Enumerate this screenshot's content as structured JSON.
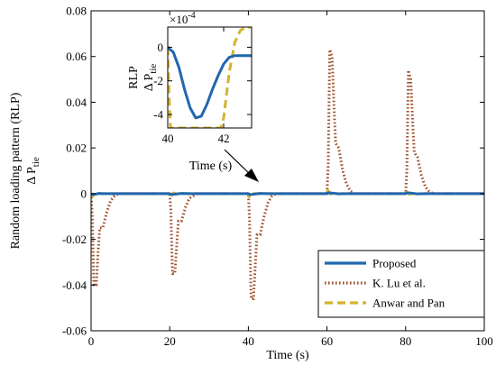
{
  "chart_data": [
    {
      "id": "main",
      "type": "line",
      "title": "",
      "xlabel": "Time (s)",
      "ylabel_line1": "Random loading pattern (RLP)",
      "ylabel_line2_prefix": "Δ P",
      "ylabel_line2_sub": "tie",
      "xlim": [
        0,
        100
      ],
      "ylim": [
        -0.06,
        0.08
      ],
      "xticks": [
        0,
        20,
        40,
        60,
        80,
        100
      ],
      "yticks": [
        -0.06,
        -0.04,
        -0.02,
        0,
        0.02,
        0.04,
        0.06,
        0.08
      ],
      "xtick_labels": [
        "0",
        "20",
        "40",
        "60",
        "80",
        "100"
      ],
      "ytick_labels": [
        "-0.06",
        "-0.04",
        "-0.02",
        "0",
        "0.02",
        "0.04",
        "0.06",
        "0.08"
      ],
      "legend_position": "bottom-right",
      "series": [
        {
          "name": "Proposed",
          "color": "#2166b0",
          "style": "solid",
          "x": [
            0,
            0.3,
            1,
            2,
            3,
            5,
            20,
            20.3,
            21,
            23,
            25,
            40,
            40.3,
            41,
            43,
            45,
            60,
            60.5,
            61,
            63,
            65,
            80,
            80.5,
            81,
            83,
            85,
            100
          ],
          "y": [
            0,
            -0.0004,
            -0.0003,
            0.0001,
            0,
            0,
            0,
            -0.0004,
            -0.0003,
            0.0001,
            0,
            0,
            -0.0004,
            -0.0003,
            0.0001,
            0,
            0,
            0.0004,
            0.0003,
            -0.0001,
            0,
            0,
            0.0004,
            0.0003,
            -0.0001,
            0,
            0
          ]
        },
        {
          "name": "K. Lu et al.",
          "color": "#a0522d",
          "style": "dotted",
          "x": [
            0,
            0.3,
            0.7,
            1.3,
            1.8,
            2.2,
            3,
            4,
            5,
            6,
            7,
            20,
            20.3,
            20.7,
            21.3,
            21.8,
            22.2,
            23,
            24,
            25,
            26,
            27,
            40,
            40.3,
            40.7,
            41.3,
            41.8,
            42.2,
            43,
            44,
            45,
            46,
            47,
            60,
            60.3,
            60.7,
            61.3,
            61.8,
            62.2,
            63,
            64,
            65,
            66,
            67,
            80,
            80.3,
            80.7,
            81.3,
            81.8,
            82.2,
            83,
            84,
            85,
            86,
            87,
            100
          ],
          "y": [
            0,
            -0.01,
            -0.04,
            -0.04,
            -0.025,
            -0.015,
            -0.015,
            -0.008,
            -0.003,
            -0.001,
            0,
            0,
            -0.008,
            -0.035,
            -0.035,
            -0.022,
            -0.012,
            -0.012,
            -0.006,
            -0.002,
            -0.001,
            0,
            0,
            -0.012,
            -0.046,
            -0.046,
            -0.03,
            -0.018,
            -0.018,
            -0.01,
            -0.004,
            -0.001,
            0,
            0,
            0.012,
            0.063,
            0.06,
            0.037,
            0.022,
            0.02,
            0.01,
            0.004,
            0.001,
            0,
            0,
            0.01,
            0.054,
            0.05,
            0.031,
            0.018,
            0.016,
            0.008,
            0.003,
            0.001,
            0,
            0
          ]
        },
        {
          "name": "Anwar and Pan",
          "color": "#d4b32e",
          "style": "dashed",
          "x": [
            0,
            0.2,
            0.5,
            0.9,
            1.5,
            2.5,
            20,
            20.2,
            20.5,
            20.9,
            21.5,
            22.5,
            40,
            40.2,
            40.5,
            40.9,
            41.5,
            42.5,
            60,
            60.2,
            60.5,
            60.9,
            61.5,
            62.5,
            80,
            80.2,
            80.5,
            80.9,
            81.5,
            82.5,
            100
          ],
          "y": [
            0,
            -0.0015,
            -0.0008,
            0.0003,
            0,
            0,
            0,
            -0.0015,
            -0.0008,
            0.0003,
            0,
            0,
            0,
            -0.0015,
            -0.0008,
            0.0003,
            0,
            0,
            0,
            0.0015,
            0.0008,
            -0.0003,
            0,
            0,
            0,
            0.0015,
            0.0008,
            -0.0003,
            0,
            0,
            0
          ]
        }
      ]
    },
    {
      "id": "inset",
      "type": "line",
      "title": "",
      "xlabel": "Time (s)",
      "ylabel_line1": "RLP",
      "ylabel_line2_prefix": "Δ P",
      "ylabel_line2_sub": "tie",
      "multiplier_base": "×10",
      "multiplier_exp": "-4",
      "xlim": [
        40,
        43
      ],
      "ylim": [
        -0.00048,
        0.00012
      ],
      "xticks": [
        40,
        42
      ],
      "yticks": [
        0,
        -0.0002,
        -0.0004
      ],
      "xtick_labels": [
        "40",
        "42"
      ],
      "ytick_labels": [
        "0",
        "-2",
        "-4"
      ],
      "series": [
        {
          "name": "Proposed",
          "color": "#2166b0",
          "style": "solid",
          "x": [
            40,
            40.2,
            40.4,
            40.6,
            40.8,
            41.0,
            41.2,
            41.4,
            41.6,
            41.8,
            42.0,
            42.2,
            42.4,
            42.6,
            42.8,
            43
          ],
          "y": [
            0,
            -3e-05,
            -0.00012,
            -0.00025,
            -0.00036,
            -0.00042,
            -0.00041,
            -0.00034,
            -0.00025,
            -0.00017,
            -0.0001,
            -6e-05,
            -5e-05,
            -5e-05,
            -5e-05,
            -5e-05
          ]
        },
        {
          "name": "Anwar and Pan",
          "color": "#d4b32e",
          "style": "dashed",
          "x": [
            40,
            40.05,
            40.1,
            41.9,
            42.0,
            42.2,
            42.4,
            42.6,
            42.8,
            43
          ],
          "y": [
            0,
            -0.0003,
            -0.00048,
            -0.00048,
            -0.00042,
            -0.00015,
            3e-05,
            0.0001,
            0.00012,
            0.00012
          ]
        }
      ]
    }
  ]
}
